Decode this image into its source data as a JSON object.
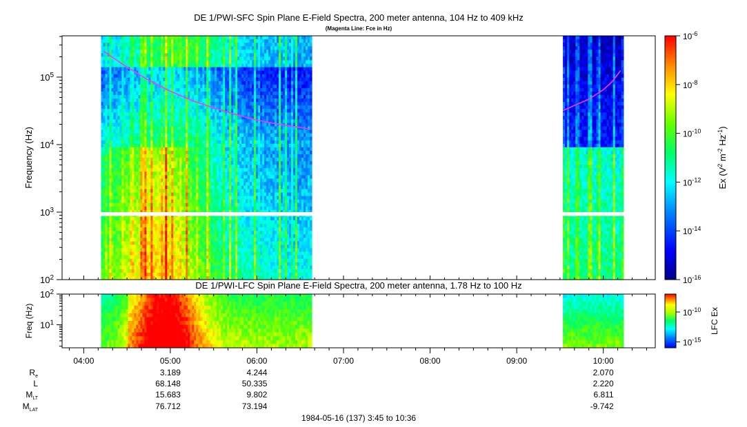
{
  "chart_data": [
    {
      "type": "heatmap",
      "title": "DE 1/PWI-SFC  Spin Plane E-Field Spectra, 200 meter antenna, 104 Hz to 409 kHz",
      "subtitle": "(Magenta Line: Fce in Hz)",
      "ylabel": "Frequency (Hz)",
      "yscale": "log",
      "ylim": [
        100,
        409000
      ],
      "yticks": [
        {
          "value": 100,
          "base": "10",
          "exp": "2"
        },
        {
          "value": 1000,
          "base": "10",
          "exp": "3"
        },
        {
          "value": 10000,
          "base": "10",
          "exp": "4"
        },
        {
          "value": 100000,
          "base": "10",
          "exp": "5"
        }
      ],
      "colorbar": {
        "label_main": "Ex (V",
        "label_sup1": "2",
        "label_mid": " m",
        "label_sup2": "-2",
        "label_mid2": " Hz",
        "label_sup3": "-1",
        "label_end": ")",
        "scale": "log",
        "range": [
          1e-16,
          1e-06
        ],
        "ticks": [
          {
            "value": 1e-06,
            "base": "10",
            "exp": "-6"
          },
          {
            "value": 1e-08,
            "base": "10",
            "exp": "-8"
          },
          {
            "value": 1e-10,
            "base": "10",
            "exp": "-10"
          },
          {
            "value": 1e-12,
            "base": "10",
            "exp": "-12"
          },
          {
            "value": 1e-14,
            "base": "10",
            "exp": "-14"
          },
          {
            "value": 1e-16,
            "base": "10",
            "exp": "-16"
          }
        ]
      },
      "data_intervals": [
        {
          "start": "04:12",
          "end": "06:38"
        },
        {
          "start": "09:32",
          "end": "10:14"
        }
      ],
      "series": [
        {
          "name": "Fce",
          "color": "#ff33ff",
          "segments": [
            {
              "x": [
                "04:14",
                "04:30",
                "04:45",
                "05:00",
                "05:15",
                "05:30",
                "05:45",
                "06:00",
                "06:15",
                "06:30",
                "06:37"
              ],
              "y": [
                240000,
                140000,
                90000,
                62000,
                45000,
                35000,
                28000,
                23000,
                20000,
                18000,
                17000
              ]
            },
            {
              "x": [
                "09:32",
                "09:40",
                "09:50",
                "10:00",
                "10:06",
                "10:12"
              ],
              "y": [
                32000,
                38000,
                47000,
                65000,
                85000,
                125000
              ]
            }
          ]
        }
      ]
    },
    {
      "type": "heatmap",
      "title": "DE 1/PWI-LFC  Spin Plane E-Field Spectra, 200 meter antenna, 1.78 Hz to 100 Hz",
      "ylabel": "Freq (Hz)",
      "yscale": "log",
      "ylim": [
        1.78,
        100
      ],
      "yticks": [
        {
          "value": 10,
          "base": "10",
          "exp": "1"
        },
        {
          "value": 100,
          "base": "10",
          "exp": "2"
        }
      ],
      "colorbar": {
        "label": "LFC Ex",
        "scale": "log",
        "range": [
          1e-16,
          1e-07
        ],
        "ticks": [
          {
            "value": 1e-10,
            "base": "10",
            "exp": "-10"
          },
          {
            "value": 1e-15,
            "base": "10",
            "exp": "-15"
          }
        ]
      },
      "data_intervals": [
        {
          "start": "04:12",
          "end": "06:38"
        },
        {
          "start": "09:32",
          "end": "10:14"
        }
      ]
    }
  ],
  "time_axis": {
    "range": [
      "03:45",
      "10:36"
    ],
    "labels": [
      "04:00",
      "05:00",
      "06:00",
      "07:00",
      "08:00",
      "09:00",
      "10:00"
    ]
  },
  "ephemeris": {
    "rows": [
      {
        "label": "R",
        "sub": "e",
        "values": [
          "3.189",
          "4.244",
          "2.070"
        ]
      },
      {
        "label": "L",
        "sub": "",
        "values": [
          "68.148",
          "50.335",
          "2.220"
        ]
      },
      {
        "label": "M",
        "sub": "LT",
        "values": [
          "15.683",
          "9.802",
          "6.811"
        ]
      },
      {
        "label": "M",
        "sub": "LAT",
        "values": [
          "76.712",
          "73.194",
          "-9.742"
        ]
      }
    ],
    "columns": [
      "05:00",
      "06:00",
      "10:00"
    ]
  },
  "footer": "1984-05-16 (137) 3:45 to 10:36"
}
